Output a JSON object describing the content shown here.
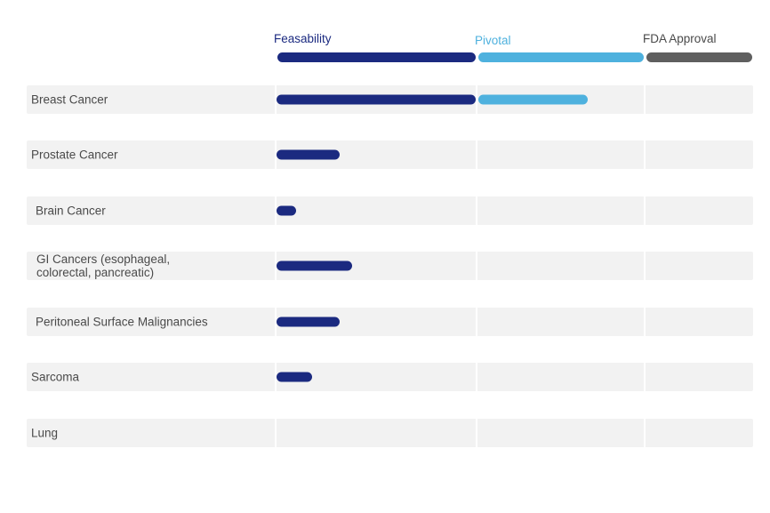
{
  "chart_data": {
    "type": "bar",
    "stages": [
      {
        "name": "Feasability",
        "color": "#1b2a80",
        "end": 1
      },
      {
        "name": "Pivotal",
        "color": "#4eb1de",
        "end": 2
      },
      {
        "name": "FDA Approval",
        "color": "#5f5f5f",
        "end": 3
      }
    ],
    "categories": [
      "Breast Cancer",
      "Prostate Cancer",
      "Brain Cancer",
      "GI Cancers (esophageal,\ncolorectal, pancreatic)",
      "Peritoneal Surface Malignancies",
      "Sarcoma",
      "Lung"
    ],
    "values": [
      1.66,
      0.32,
      0.1,
      0.38,
      0.32,
      0.18,
      0
    ],
    "xlim": [
      0,
      3
    ]
  }
}
